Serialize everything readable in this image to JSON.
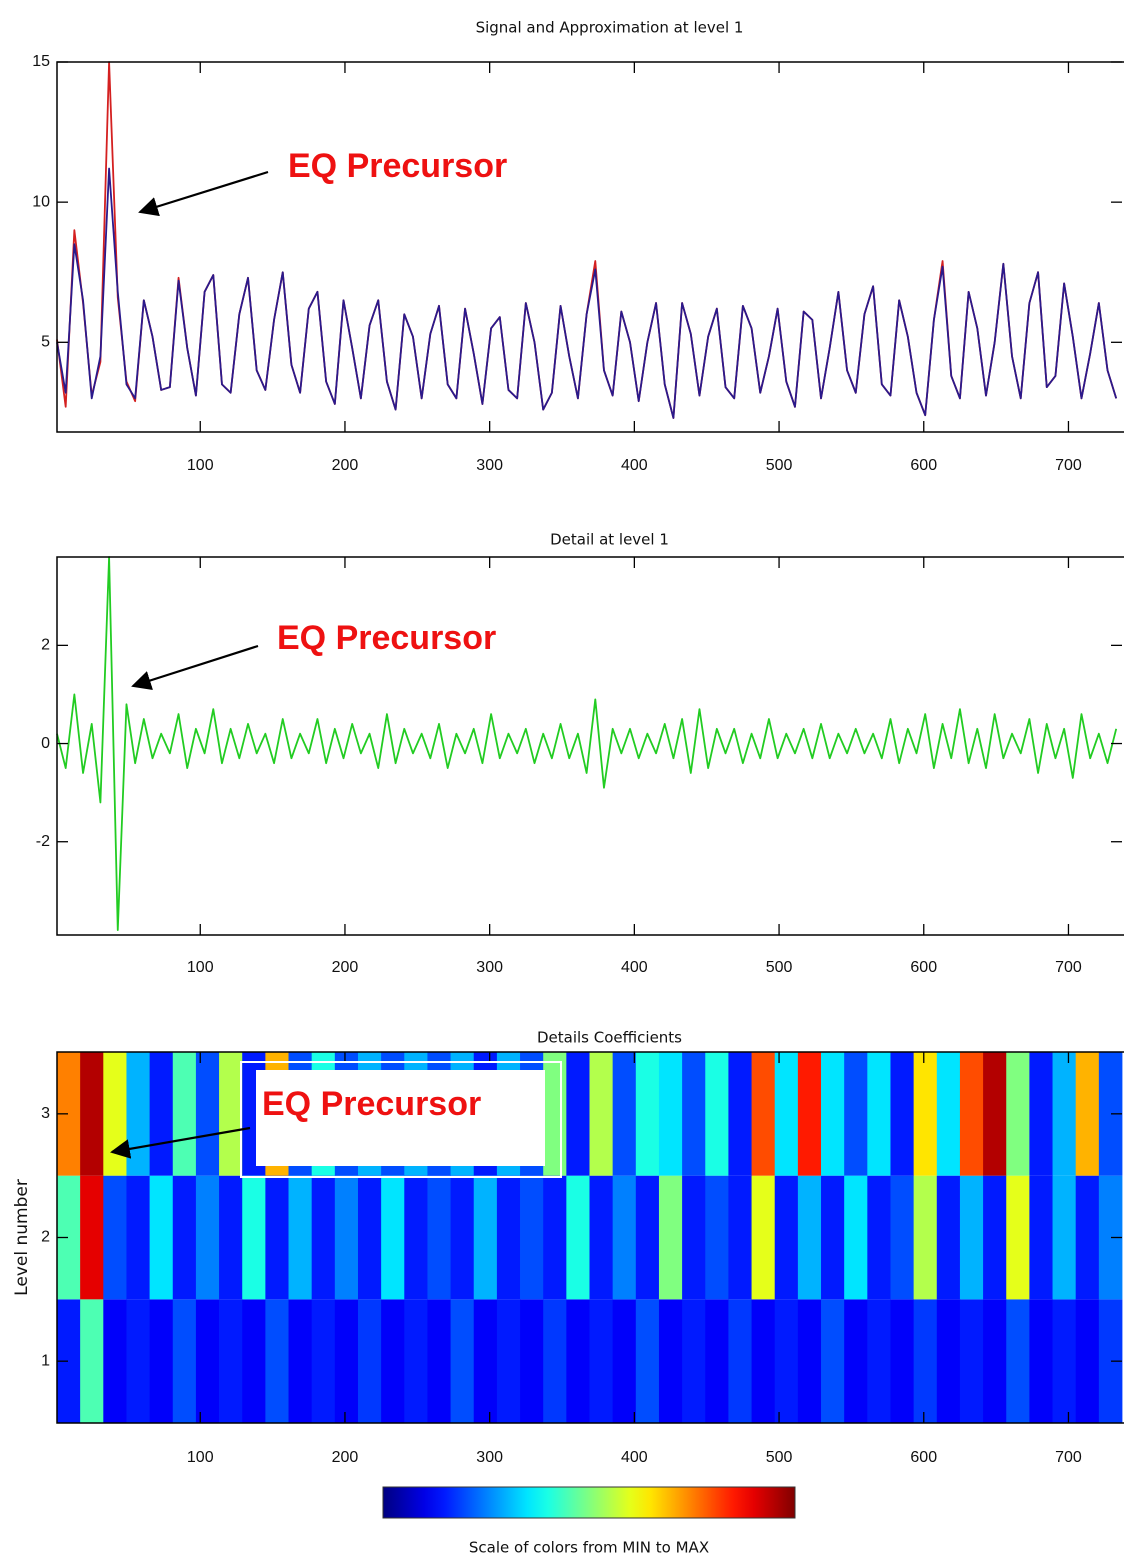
{
  "chart_data": [
    {
      "type": "line",
      "title": "Signal and Approximation at level 1",
      "annotation": "EQ Precursor",
      "xlim": [
        1,
        737
      ],
      "xticks": [
        100,
        200,
        300,
        400,
        500,
        600,
        700
      ],
      "ylim": [
        1.8,
        15
      ],
      "yticks": [
        5,
        10,
        15
      ],
      "x": [
        1,
        7,
        13,
        19,
        25,
        31,
        37,
        43,
        49,
        55,
        61,
        67,
        73,
        79,
        85,
        91,
        97,
        103,
        109,
        115,
        121,
        127,
        133,
        139,
        145,
        151,
        157,
        163,
        169,
        175,
        181,
        187,
        193,
        199,
        205,
        211,
        217,
        223,
        229,
        235,
        241,
        247,
        253,
        259,
        265,
        271,
        277,
        283,
        289,
        295,
        301,
        307,
        313,
        319,
        325,
        331,
        337,
        343,
        349,
        355,
        361,
        367,
        373,
        379,
        385,
        391,
        397,
        403,
        409,
        415,
        421,
        427,
        433,
        439,
        445,
        451,
        457,
        463,
        469,
        475,
        481,
        487,
        493,
        499,
        505,
        511,
        517,
        523,
        529,
        535,
        541,
        547,
        553,
        559,
        565,
        571,
        577,
        583,
        589,
        595,
        601,
        607,
        613,
        619,
        625,
        631,
        637,
        643,
        649,
        655,
        661,
        667,
        673,
        679,
        685,
        691,
        697,
        703,
        709,
        715,
        721,
        727,
        733
      ],
      "series": [
        {
          "color": "#d42020",
          "values": [
            5.1,
            2.7,
            9.0,
            6.4,
            3.1,
            4.3,
            15.0,
            6.6,
            3.6,
            2.9,
            6.5,
            5.2,
            3.3,
            3.4,
            7.3,
            4.8,
            3.1,
            6.8,
            7.4,
            3.5,
            3.2,
            6.0,
            7.3,
            4.0,
            3.3,
            5.8,
            7.5,
            4.2,
            3.2,
            6.2,
            6.8,
            3.6,
            2.8,
            6.5,
            4.8,
            3.0,
            5.6,
            6.5,
            3.6,
            2.6,
            6.0,
            5.2,
            3.0,
            5.3,
            6.3,
            3.5,
            3.0,
            6.2,
            4.6,
            2.8,
            5.5,
            5.9,
            3.3,
            3.0,
            6.4,
            5.0,
            2.6,
            3.2,
            6.3,
            4.5,
            3.0,
            6.0,
            7.9,
            4.0,
            3.1,
            6.1,
            5.0,
            2.9,
            5.0,
            6.4,
            3.5,
            2.3,
            6.4,
            5.3,
            3.1,
            5.2,
            6.2,
            3.4,
            3.0,
            6.3,
            5.5,
            3.2,
            4.5,
            6.2,
            3.6,
            2.7,
            6.1,
            5.8,
            3.0,
            4.8,
            6.8,
            4.0,
            3.2,
            6.0,
            7.0,
            3.5,
            3.1,
            6.5,
            5.2,
            3.2,
            2.4,
            5.8,
            7.9,
            3.8,
            3.0,
            6.8,
            5.5,
            3.1,
            5.0,
            7.8,
            4.5,
            3.0,
            6.4,
            7.5,
            3.4,
            3.8,
            7.1,
            5.2,
            3.0,
            4.6,
            6.4,
            4.0,
            3.0
          ]
        },
        {
          "color": "#2a1a8c",
          "values": [
            5.0,
            3.2,
            8.5,
            6.5,
            3.0,
            4.5,
            11.2,
            6.8,
            3.5,
            3.0,
            6.5,
            5.2,
            3.3,
            3.4,
            7.2,
            4.8,
            3.1,
            6.8,
            7.4,
            3.5,
            3.2,
            6.0,
            7.3,
            4.0,
            3.3,
            5.8,
            7.5,
            4.2,
            3.2,
            6.2,
            6.8,
            3.6,
            2.8,
            6.5,
            4.8,
            3.0,
            5.6,
            6.5,
            3.6,
            2.6,
            6.0,
            5.2,
            3.0,
            5.3,
            6.3,
            3.5,
            3.0,
            6.2,
            4.6,
            2.8,
            5.5,
            5.9,
            3.3,
            3.0,
            6.4,
            5.0,
            2.6,
            3.2,
            6.3,
            4.5,
            3.0,
            6.0,
            7.6,
            4.0,
            3.1,
            6.1,
            5.0,
            2.9,
            5.0,
            6.4,
            3.5,
            2.3,
            6.4,
            5.3,
            3.1,
            5.2,
            6.2,
            3.4,
            3.0,
            6.3,
            5.5,
            3.2,
            4.5,
            6.2,
            3.6,
            2.7,
            6.1,
            5.8,
            3.0,
            4.8,
            6.8,
            4.0,
            3.2,
            6.0,
            7.0,
            3.5,
            3.1,
            6.5,
            5.2,
            3.2,
            2.4,
            5.8,
            7.7,
            3.8,
            3.0,
            6.8,
            5.5,
            3.1,
            5.0,
            7.8,
            4.5,
            3.0,
            6.4,
            7.5,
            3.4,
            3.8,
            7.1,
            5.2,
            3.0,
            4.6,
            6.4,
            4.0,
            3.0
          ]
        }
      ]
    },
    {
      "type": "line",
      "title": "Detail at level 1",
      "annotation": "EQ Precursor",
      "xlim": [
        1,
        737
      ],
      "xticks": [
        100,
        200,
        300,
        400,
        500,
        600,
        700
      ],
      "ylim": [
        -3.9,
        3.8
      ],
      "yticks": [
        -2,
        0,
        2
      ],
      "x": [
        1,
        7,
        13,
        19,
        25,
        31,
        37,
        43,
        49,
        55,
        61,
        67,
        73,
        79,
        85,
        91,
        97,
        103,
        109,
        115,
        121,
        127,
        133,
        139,
        145,
        151,
        157,
        163,
        169,
        175,
        181,
        187,
        193,
        199,
        205,
        211,
        217,
        223,
        229,
        235,
        241,
        247,
        253,
        259,
        265,
        271,
        277,
        283,
        289,
        295,
        301,
        307,
        313,
        319,
        325,
        331,
        337,
        343,
        349,
        355,
        361,
        367,
        373,
        379,
        385,
        391,
        397,
        403,
        409,
        415,
        421,
        427,
        433,
        439,
        445,
        451,
        457,
        463,
        469,
        475,
        481,
        487,
        493,
        499,
        505,
        511,
        517,
        523,
        529,
        535,
        541,
        547,
        553,
        559,
        565,
        571,
        577,
        583,
        589,
        595,
        601,
        607,
        613,
        619,
        625,
        631,
        637,
        643,
        649,
        655,
        661,
        667,
        673,
        679,
        685,
        691,
        697,
        703,
        709,
        715,
        721,
        727,
        733
      ],
      "series": [
        {
          "color": "#22cc22",
          "values": [
            0.2,
            -0.5,
            1.0,
            -0.6,
            0.4,
            -1.2,
            3.8,
            -3.8,
            0.8,
            -0.4,
            0.5,
            -0.3,
            0.2,
            -0.2,
            0.6,
            -0.5,
            0.3,
            -0.2,
            0.7,
            -0.4,
            0.3,
            -0.3,
            0.4,
            -0.2,
            0.2,
            -0.4,
            0.5,
            -0.3,
            0.2,
            -0.2,
            0.5,
            -0.4,
            0.3,
            -0.3,
            0.4,
            -0.2,
            0.2,
            -0.5,
            0.6,
            -0.4,
            0.3,
            -0.2,
            0.2,
            -0.3,
            0.4,
            -0.5,
            0.2,
            -0.2,
            0.3,
            -0.4,
            0.6,
            -0.3,
            0.2,
            -0.2,
            0.3,
            -0.4,
            0.2,
            -0.3,
            0.4,
            -0.3,
            0.2,
            -0.6,
            0.9,
            -0.9,
            0.3,
            -0.2,
            0.3,
            -0.3,
            0.2,
            -0.2,
            0.4,
            -0.3,
            0.5,
            -0.6,
            0.7,
            -0.5,
            0.3,
            -0.2,
            0.3,
            -0.4,
            0.2,
            -0.3,
            0.5,
            -0.3,
            0.2,
            -0.2,
            0.3,
            -0.3,
            0.4,
            -0.3,
            0.2,
            -0.2,
            0.3,
            -0.2,
            0.2,
            -0.3,
            0.5,
            -0.4,
            0.3,
            -0.2,
            0.6,
            -0.5,
            0.4,
            -0.3,
            0.7,
            -0.4,
            0.3,
            -0.5,
            0.6,
            -0.3,
            0.2,
            -0.2,
            0.5,
            -0.6,
            0.4,
            -0.3,
            0.3,
            -0.7,
            0.6,
            -0.3,
            0.2,
            -0.4,
            0.3
          ]
        }
      ]
    },
    {
      "type": "heatmap",
      "title": "Details Coefficients",
      "annotation": "EQ Precursor",
      "ylabel": "Level number",
      "colorbar_label": "Scale of colors from MIN to MAX",
      "colormap": "jet",
      "clim": [
        0,
        1
      ],
      "xlim": [
        1,
        737
      ],
      "xticks": [
        100,
        200,
        300,
        400,
        500,
        600,
        700
      ],
      "ylim": [
        0.5,
        3.5
      ],
      "yticks": [
        1,
        2,
        3
      ],
      "y": [
        1,
        2,
        3
      ],
      "z": [
        [
          0.15,
          0.45,
          0.12,
          0.15,
          0.12,
          0.2,
          0.12,
          0.15,
          0.12,
          0.2,
          0.12,
          0.15,
          0.12,
          0.18,
          0.12,
          0.15,
          0.12,
          0.2,
          0.12,
          0.15,
          0.12,
          0.18,
          0.12,
          0.15,
          0.12,
          0.2,
          0.12,
          0.15,
          0.12,
          0.18,
          0.12,
          0.15,
          0.12,
          0.2,
          0.12,
          0.15,
          0.12,
          0.18,
          0.12,
          0.15,
          0.12,
          0.2,
          0.12,
          0.15,
          0.12,
          0.18
        ],
        [
          0.45,
          0.9,
          0.2,
          0.15,
          0.35,
          0.15,
          0.25,
          0.15,
          0.4,
          0.15,
          0.3,
          0.15,
          0.25,
          0.15,
          0.35,
          0.15,
          0.2,
          0.15,
          0.3,
          0.15,
          0.2,
          0.15,
          0.4,
          0.15,
          0.25,
          0.15,
          0.5,
          0.15,
          0.2,
          0.15,
          0.6,
          0.15,
          0.3,
          0.15,
          0.35,
          0.15,
          0.2,
          0.55,
          0.15,
          0.3,
          0.15,
          0.6,
          0.15,
          0.3,
          0.15,
          0.25
        ],
        [
          0.75,
          0.95,
          0.6,
          0.3,
          0.15,
          0.45,
          0.2,
          0.55,
          0.15,
          0.7,
          0.2,
          0.4,
          0.2,
          0.3,
          0.2,
          0.3,
          0.2,
          0.3,
          0.15,
          0.3,
          0.2,
          0.5,
          0.15,
          0.55,
          0.2,
          0.4,
          0.35,
          0.2,
          0.4,
          0.15,
          0.8,
          0.35,
          0.85,
          0.35,
          0.2,
          0.35,
          0.15,
          0.65,
          0.35,
          0.8,
          0.95,
          0.5,
          0.15,
          0.3,
          0.7,
          0.2
        ]
      ]
    }
  ]
}
